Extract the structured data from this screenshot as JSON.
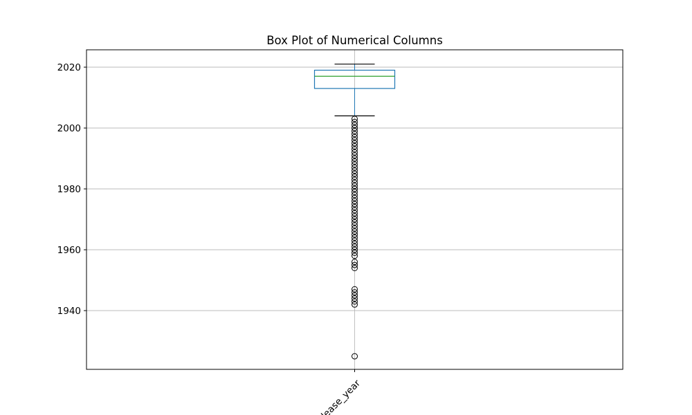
{
  "chart_data": {
    "type": "box",
    "title": "Box Plot of Numerical Columns",
    "xlabel": "",
    "ylabel": "",
    "grid": true,
    "ylim": [
      1920.7,
      2025.7
    ],
    "yticks": [
      1940,
      1960,
      1980,
      2000,
      2020
    ],
    "categories": [
      "release_year"
    ],
    "boxes": [
      {
        "category": "release_year",
        "whisker_low": 2004,
        "q1": 2013,
        "median": 2017,
        "q3": 2019,
        "whisker_high": 2021,
        "outliers": [
          2003,
          2002,
          2001,
          2000,
          1999,
          1998,
          1997,
          1996,
          1995,
          1994,
          1993,
          1992,
          1991,
          1990,
          1989,
          1988,
          1987,
          1986,
          1985,
          1984,
          1983,
          1982,
          1981,
          1980,
          1979,
          1978,
          1977,
          1976,
          1975,
          1974,
          1973,
          1972,
          1971,
          1970,
          1969,
          1968,
          1967,
          1966,
          1965,
          1964,
          1963,
          1962,
          1961,
          1960,
          1959,
          1958,
          1956,
          1955,
          1954,
          1947,
          1946,
          1945,
          1944,
          1943,
          1942,
          1925
        ]
      }
    ],
    "colors": {
      "box": "#1f77b4",
      "median": "#2ca02c",
      "whisker_cap": "#000000",
      "outlier": "#000000",
      "grid": "#b0b0b0"
    }
  }
}
